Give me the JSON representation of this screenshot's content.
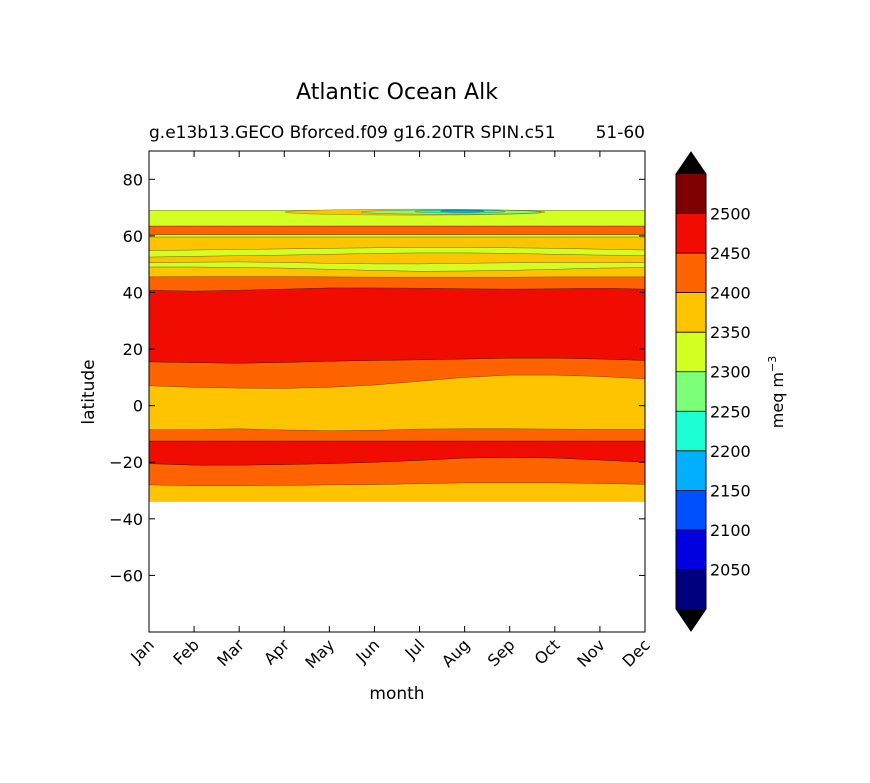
{
  "chart_data": {
    "type": "contour",
    "title": "Atlantic Ocean Alk",
    "subtitle_left": "g.e13b13.GECO Bforced.f09 g16.20TR SPIN.c51",
    "subtitle_right": "51-60",
    "xlabel": "month",
    "ylabel": "latitude",
    "x_categories": [
      "Jan",
      "Feb",
      "Mar",
      "Apr",
      "May",
      "Jun",
      "Jul",
      "Aug",
      "Sep",
      "Oct",
      "Nov",
      "Dec"
    ],
    "ylim": [
      -80,
      90
    ],
    "yticks": [
      80,
      60,
      40,
      20,
      0,
      -20,
      -40,
      -60
    ],
    "ytick_labels": [
      "80",
      "60",
      "40",
      "20",
      "0",
      "−20",
      "−40",
      "−60"
    ],
    "data_extent_lat": [
      -34,
      69
    ],
    "colorbar": {
      "label_base": "meq m",
      "label_exp": "−3",
      "levels": [
        2000,
        2050,
        2100,
        2150,
        2200,
        2250,
        2300,
        2350,
        2400,
        2450,
        2500,
        2550
      ],
      "tick_values": [
        2050,
        2100,
        2150,
        2200,
        2250,
        2300,
        2350,
        2400,
        2450,
        2500
      ],
      "colors": [
        "#00007f",
        "#0000e0",
        "#0050ff",
        "#00b0ff",
        "#1cffd2",
        "#7cff79",
        "#d4ff23",
        "#ffc400",
        "#ff6300",
        "#f00c00",
        "#7f0000"
      ],
      "extend": "both",
      "extend_colors": [
        "#000000",
        "#000000"
      ]
    },
    "bands": [
      {
        "level": "2400-2450",
        "lower": [
          -28,
          -28.3,
          -28.3,
          -28.2,
          -28,
          -27.9,
          -27.6,
          -27.3,
          -27.3,
          -27.3,
          -27.5,
          -27.8
        ],
        "upper": [
          -20.5,
          -21,
          -21,
          -20.8,
          -20.5,
          -20,
          -19.3,
          -18.5,
          -18.3,
          -18.5,
          -19.2,
          -20
        ]
      },
      {
        "level": "2450-2500",
        "lower": [
          -20.5,
          -21,
          -21,
          -20.8,
          -20.5,
          -20,
          -19.3,
          -18.5,
          -18.3,
          -18.5,
          -19.2,
          -20
        ],
        "upper": [
          -12.5,
          -12.5,
          -12.5,
          -12.5,
          -12.5,
          -12.5,
          -12.5,
          -12.5,
          -12.5,
          -12.5,
          -12.5,
          -12.5
        ]
      },
      {
        "level": "2400-2450",
        "lower": [
          -12.5,
          -12.5,
          -12.5,
          -12.5,
          -12.5,
          -12.5,
          -12.5,
          -12.5,
          -12.5,
          -12.5,
          -12.5,
          -12.5
        ],
        "upper": [
          -8.5,
          -8.5,
          -8.2,
          -8.6,
          -8.9,
          -8.7,
          -8.3,
          -8.2,
          -8.2,
          -8.3,
          -8.4,
          -8.4
        ]
      },
      {
        "level": "2400-2450",
        "lower": [
          7,
          6.5,
          6.2,
          6.1,
          6.5,
          7.3,
          8.6,
          10,
          10.8,
          10.8,
          10.3,
          9.5
        ],
        "upper": [
          15.5,
          15.2,
          15,
          15.3,
          15.7,
          16,
          16.2,
          16.5,
          16.8,
          16.8,
          16.5,
          16
        ]
      },
      {
        "level": "2450-2500",
        "lower": [
          15.5,
          15.2,
          15,
          15.3,
          15.7,
          16,
          16.2,
          16.5,
          16.8,
          16.8,
          16.5,
          16
        ],
        "upper": [
          40.8,
          40.5,
          40.8,
          41.2,
          41.6,
          41.6,
          41.5,
          41.3,
          41.2,
          41.3,
          41.5,
          41.2
        ]
      },
      {
        "level": "2400-2450",
        "lower": [
          40.8,
          40.5,
          40.8,
          41.2,
          41.6,
          41.6,
          41.5,
          41.3,
          41.2,
          41.3,
          41.5,
          41.2
        ],
        "upper": [
          45.5,
          45.6,
          45.6,
          45.6,
          45.5,
          45.4,
          45.4,
          45.4,
          45.4,
          45.5,
          45.5,
          45.5
        ]
      },
      {
        "level": "2300-2350",
        "lower": [
          49,
          49,
          48.8,
          48.6,
          48.2,
          47.8,
          47.5,
          47.6,
          47.8,
          48.2,
          48.6,
          48.8
        ],
        "upper": [
          50.5,
          50.7,
          50.8,
          50.6,
          50.3,
          50.1,
          50.1,
          50.3,
          50.5,
          50.6,
          50.6,
          50.5
        ]
      },
      {
        "level": "2300-2350",
        "lower": [
          52.5,
          52.8,
          53,
          53.2,
          53.5,
          53.8,
          54,
          54,
          53.8,
          53.5,
          53.2,
          53
        ],
        "upper": [
          54.8,
          55,
          55.2,
          55.4,
          55.6,
          55.8,
          55.9,
          55.9,
          55.8,
          55.6,
          55.3,
          55
        ]
      },
      {
        "level": "2300-2350",
        "lower": [
          59.6,
          59.6,
          59.6,
          59.6,
          59.6,
          59.6,
          59.6,
          59.6,
          59.6,
          59.6,
          59.6,
          59.6
        ],
        "upper": [
          60.5,
          60.5,
          60.5,
          60.5,
          60.5,
          60.5,
          60.5,
          60.5,
          60.5,
          60.5,
          60.5,
          60.5
        ]
      },
      {
        "level": "2400-2450",
        "lower": [
          60.5,
          60.5,
          60.5,
          60.5,
          60.5,
          60.5,
          60.5,
          60.5,
          60.5,
          60.5,
          60.5,
          60.5
        ],
        "upper": [
          63.5,
          63.5,
          63.5,
          63.5,
          63.5,
          63.5,
          63.5,
          63.5,
          63.5,
          63.5,
          63.5,
          63.5
        ]
      },
      {
        "level": "2300-2350",
        "lower": [
          63.5,
          63.5,
          63.5,
          63.5,
          63.5,
          63.5,
          63.5,
          63.5,
          63.5,
          63.5,
          63.5,
          63.5
        ],
        "upper": [
          69,
          69,
          69,
          69,
          69,
          69,
          69,
          69,
          69,
          69,
          69,
          69
        ]
      }
    ]
  }
}
